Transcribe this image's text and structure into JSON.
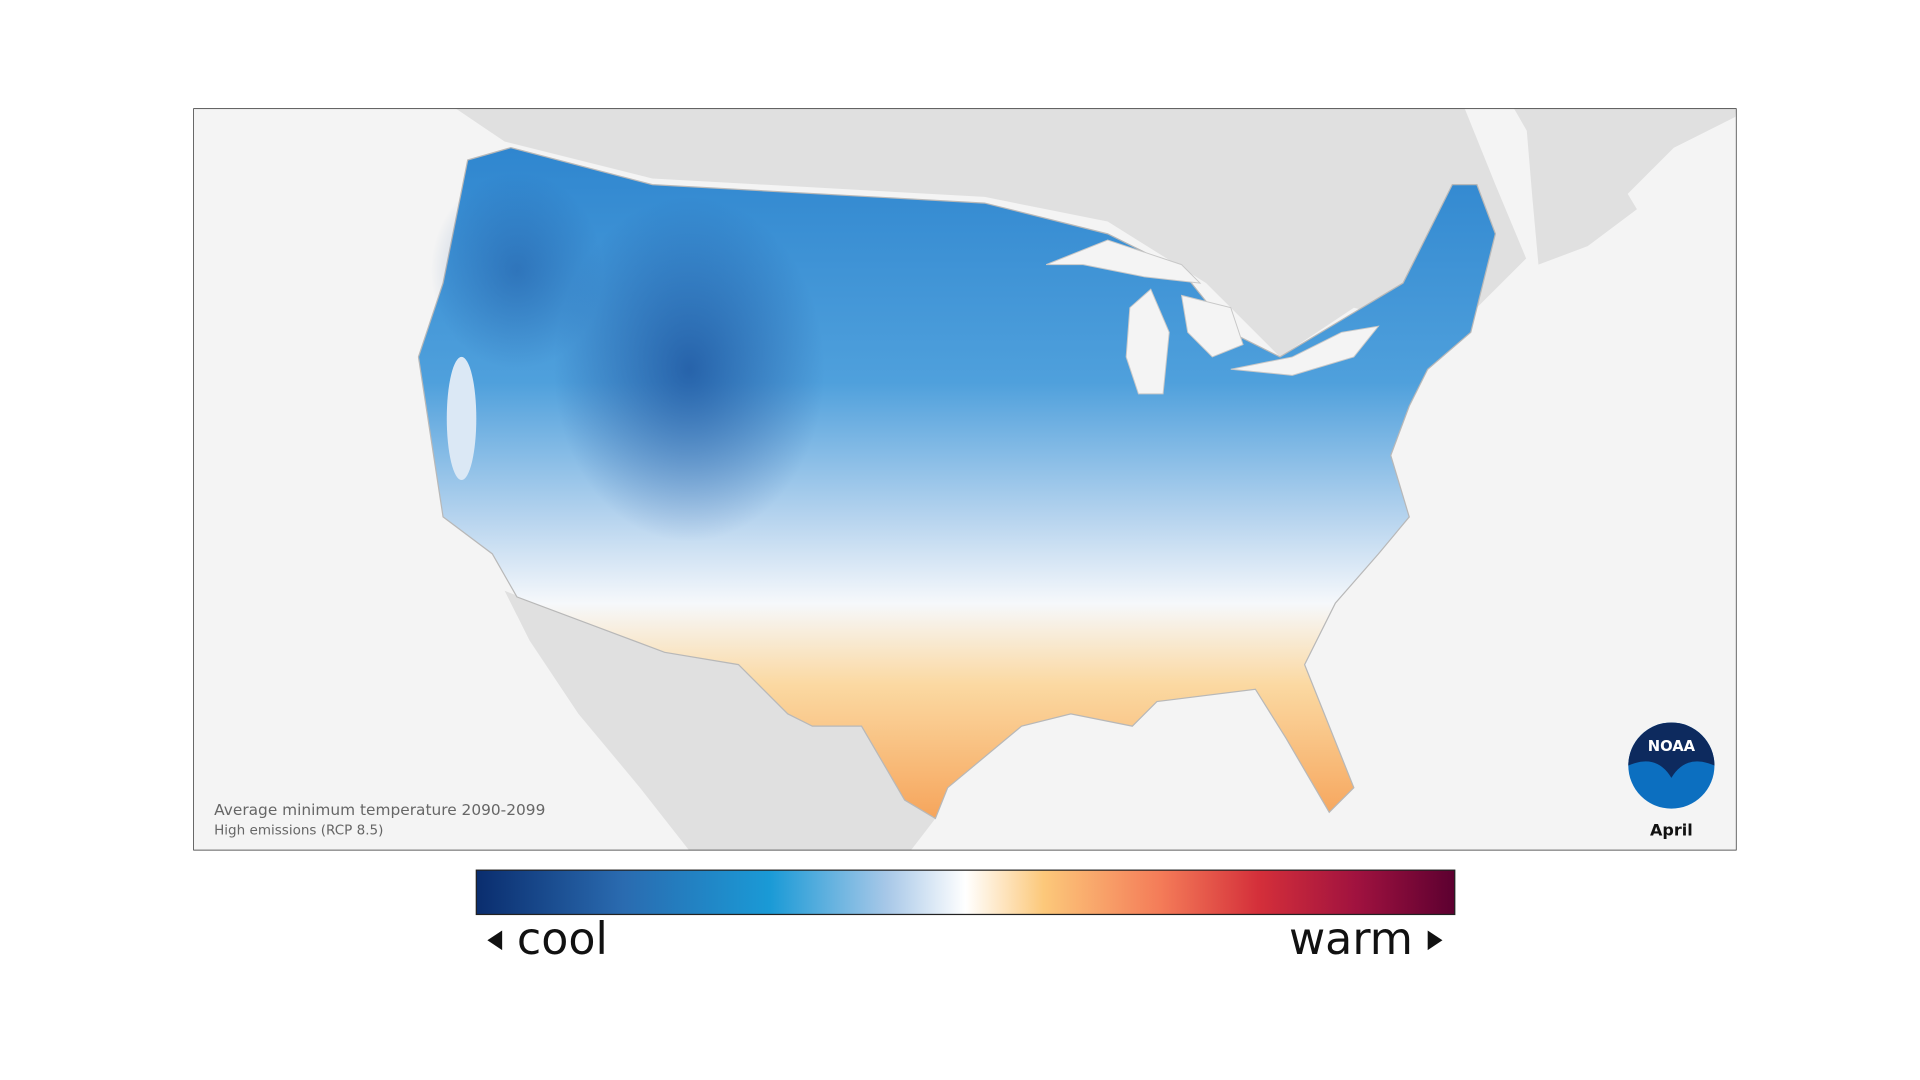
{
  "map": {
    "caption": "Average minimum temperature 2090-2099",
    "subcaption": "High emissions (RCP 8.5)",
    "month": "April",
    "logo": "NOAA"
  },
  "legend": {
    "low_label": "cool",
    "high_label": "warm"
  }
}
